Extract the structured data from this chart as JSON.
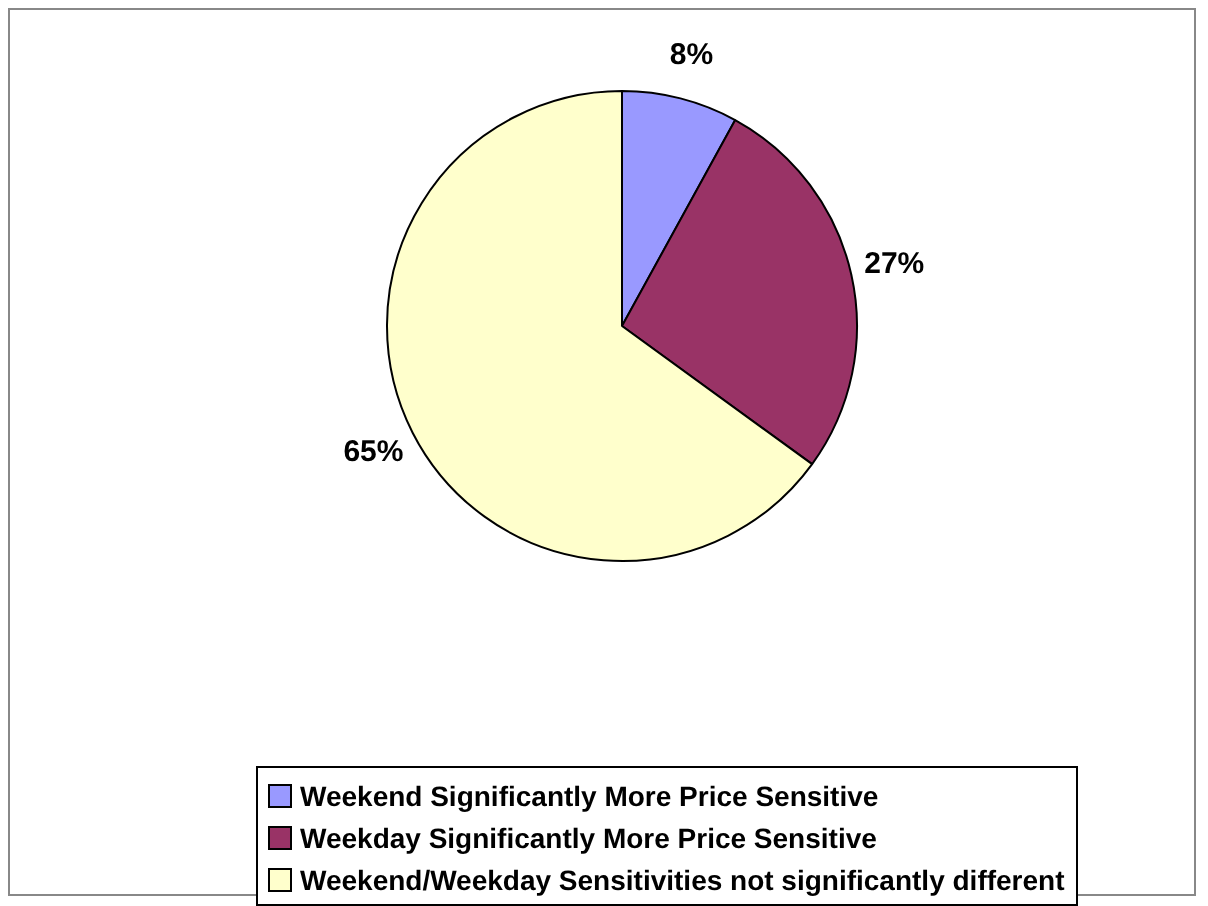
{
  "chart_data": {
    "type": "pie",
    "categories": [
      "Weekend Significantly More Price Sensitive",
      "Weekday Significantly More Price Sensitive",
      "Weekend/Weekday Sensitivities not significantly different"
    ],
    "values": [
      8,
      27,
      65
    ],
    "colors": [
      "#9999ff",
      "#993366",
      "#ffffcc"
    ],
    "value_labels": [
      "8%",
      "27%",
      "65%"
    ],
    "legend": "bottom"
  }
}
